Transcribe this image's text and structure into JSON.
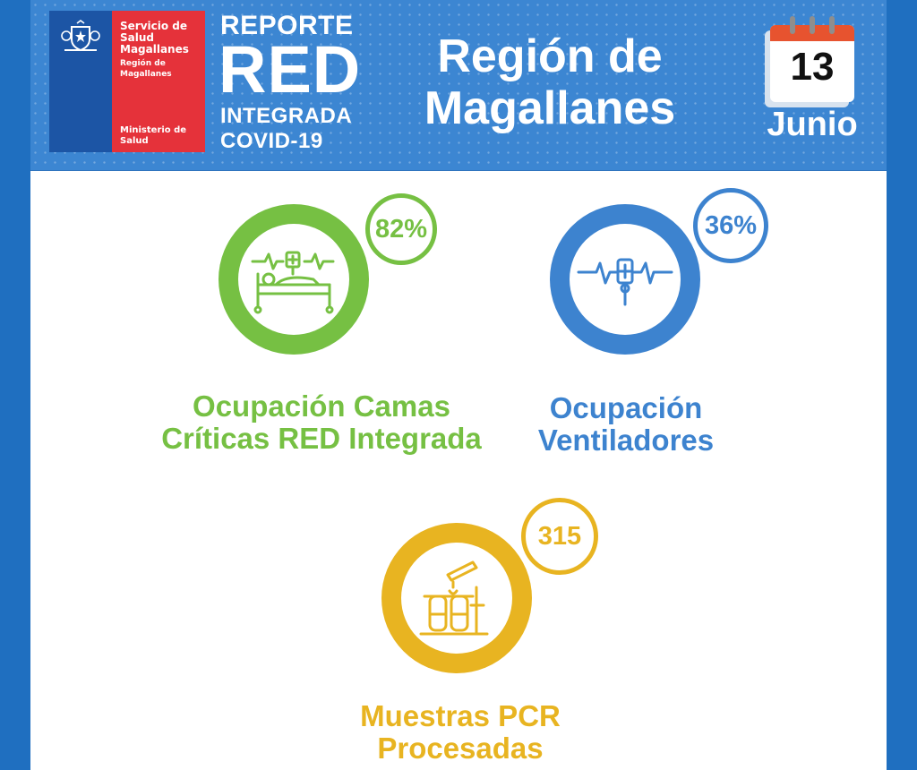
{
  "header": {
    "logo": {
      "line1": "Servicio de Salud Magallanes",
      "line2": "Región de Magallanes",
      "line3": "Ministerio de Salud"
    },
    "report": {
      "word1": "REPORTE",
      "word2": "RED",
      "word3": "INTEGRADA",
      "word4": "COVID-19"
    },
    "region": {
      "line1": "Región de",
      "line2": "Magallanes"
    },
    "date": {
      "day": "13",
      "month": "Junio",
      "icon": "calendar-icon"
    }
  },
  "stats": [
    {
      "value": "82%",
      "label_line1": "Ocupación Camas",
      "label_line2": "Críticas RED Integrada",
      "icon": "hospital-bed-icon",
      "color": "#76c043",
      "occupancy_percent": 82
    },
    {
      "value": "36%",
      "label_line1": "Ocupación",
      "label_line2": "Ventiladores",
      "icon": "ventilator-icon",
      "color": "#3d83cf",
      "occupancy_percent": 36
    },
    {
      "value": "315",
      "label_line1": "Muestras PCR",
      "label_line2": "Procesadas",
      "icon": "test-tubes-icon",
      "color": "#e8b421"
    }
  ],
  "colors": {
    "background": "#1f6fc0",
    "header": "#3c86d2",
    "logo_blue": "#1c55a5",
    "logo_red": "#e5323a"
  }
}
